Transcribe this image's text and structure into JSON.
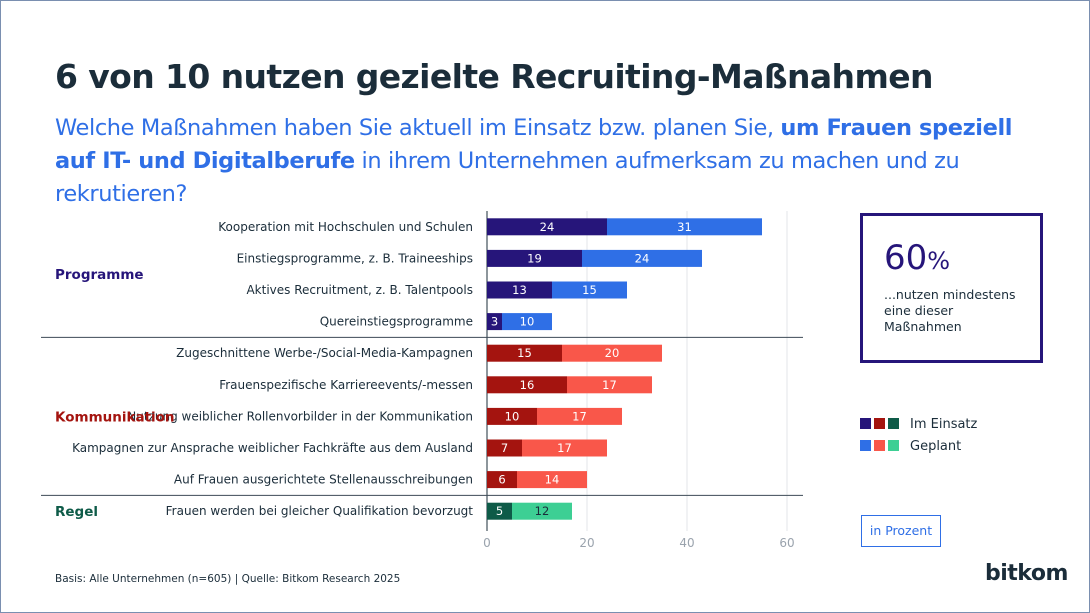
{
  "header": {
    "title": "6 von 10 nutzen gezielte Recruiting-Maßnahmen",
    "subtitle_part1": "Welche Maßnahmen haben Sie aktuell im Einsatz bzw. planen Sie, ",
    "subtitle_bold": "um Frauen speziell auf IT- und Digitalberufe",
    "subtitle_part2": " in ihrem Unternehmen aufmerksam zu machen und zu rekrutieren?"
  },
  "chart_data": {
    "type": "bar",
    "orientation": "horizontal",
    "stacked": true,
    "groups": [
      {
        "label": "Programme",
        "color": "#26157a",
        "colors": {
          "Im Einsatz": "#26157a",
          "Geplant": "#2f6fe6"
        },
        "categories": [
          "Kooperation mit Hochschulen und Schulen",
          "Einstiegsprogramme, z. B. Traineeships",
          "Aktives Recruitment, z. B. Talentpools",
          "Quereinstiegsprogramme"
        ],
        "series": [
          {
            "name": "Im Einsatz",
            "values": [
              24,
              19,
              13,
              3
            ]
          },
          {
            "name": "Geplant",
            "values": [
              31,
              24,
              15,
              10
            ]
          }
        ]
      },
      {
        "label": "Kommunikation",
        "color": "#a4140f",
        "colors": {
          "Im Einsatz": "#a4140f",
          "Geplant": "#f9574a"
        },
        "categories": [
          "Zugeschnittene Werbe-/Social-Media-Kampagnen",
          "Frauenspezifische Karriereevents/-messen",
          "Nutzung weiblicher Rollenvorbilder in der Kommunikation",
          "Kampagnen zur Ansprache weiblicher Fachkräfte aus dem Ausland",
          "Auf Frauen ausgerichtete Stellenausschreibungen"
        ],
        "series": [
          {
            "name": "Im Einsatz",
            "values": [
              15,
              16,
              10,
              7,
              6
            ]
          },
          {
            "name": "Geplant",
            "values": [
              20,
              17,
              17,
              17,
              14
            ]
          }
        ]
      },
      {
        "label": "Regel",
        "color": "#0e5b48",
        "colors": {
          "Im Einsatz": "#0e5b48",
          "Geplant": "#3dcf94"
        },
        "categories": [
          "Frauen werden bei gleicher Qualifikation bevorzugt"
        ],
        "series": [
          {
            "name": "Im Einsatz",
            "values": [
              5
            ]
          },
          {
            "name": "Geplant",
            "values": [
              12
            ]
          }
        ]
      }
    ],
    "xlim": [
      0,
      60
    ],
    "xticks": [
      0,
      20,
      40,
      60
    ],
    "grid": true,
    "legend": {
      "position": "right",
      "entries": [
        {
          "name": "Im Einsatz",
          "colors": [
            "#26157a",
            "#a4140f",
            "#0e5b48"
          ]
        },
        {
          "name": "Geplant",
          "colors": [
            "#2f6fe6",
            "#f9574a",
            "#3dcf94"
          ]
        }
      ]
    },
    "unit_label": "in Prozent"
  },
  "stat": {
    "value": "60",
    "unit": "%",
    "text": "...nutzen mindestens\neine dieser\nMaßnahmen"
  },
  "footer": {
    "basis": "Basis: Alle Unternehmen (n=605) | Quelle: Bitkom Research 2025",
    "brand": "bitkom"
  }
}
